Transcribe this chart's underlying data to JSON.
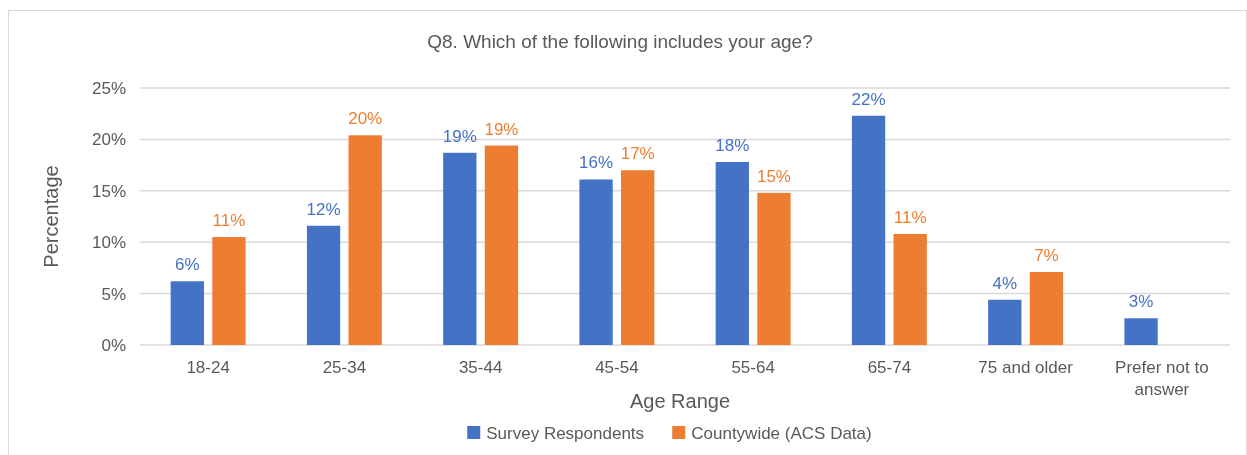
{
  "chart_data": {
    "type": "bar",
    "title": "Q8. Which of the following includes your age?",
    "xlabel": "Age Range",
    "ylabel": "Percentage",
    "categories": [
      "18-24",
      "25-34",
      "35-44",
      "45-54",
      "55-64",
      "65-74",
      "75 and older",
      "Prefer not to answer"
    ],
    "series": [
      {
        "name": "Survey Respondents",
        "color": "#4472c4",
        "values": [
          6.2,
          11.6,
          18.7,
          16.1,
          17.8,
          22.3,
          4.4,
          2.6
        ],
        "value_labels": [
          "6%",
          "12%",
          "19%",
          "16%",
          "18%",
          "22%",
          "4%",
          "3%"
        ]
      },
      {
        "name": "Countywide (ACS Data)",
        "color": "#ed7d31",
        "values": [
          10.5,
          20.4,
          19.4,
          17.0,
          14.8,
          10.8,
          7.1,
          null
        ],
        "value_labels": [
          "11%",
          "20%",
          "19%",
          "17%",
          "15%",
          "11%",
          "7%",
          null
        ]
      }
    ],
    "ylim": [
      0,
      25
    ],
    "yticks": [
      {
        "value": 0,
        "label": "0%"
      },
      {
        "value": 5,
        "label": "5%"
      },
      {
        "value": 10,
        "label": "10%"
      },
      {
        "value": 15,
        "label": "15%"
      },
      {
        "value": 20,
        "label": "20%"
      },
      {
        "value": 25,
        "label": "25%"
      }
    ],
    "grid": "y",
    "legend": "bottom"
  }
}
